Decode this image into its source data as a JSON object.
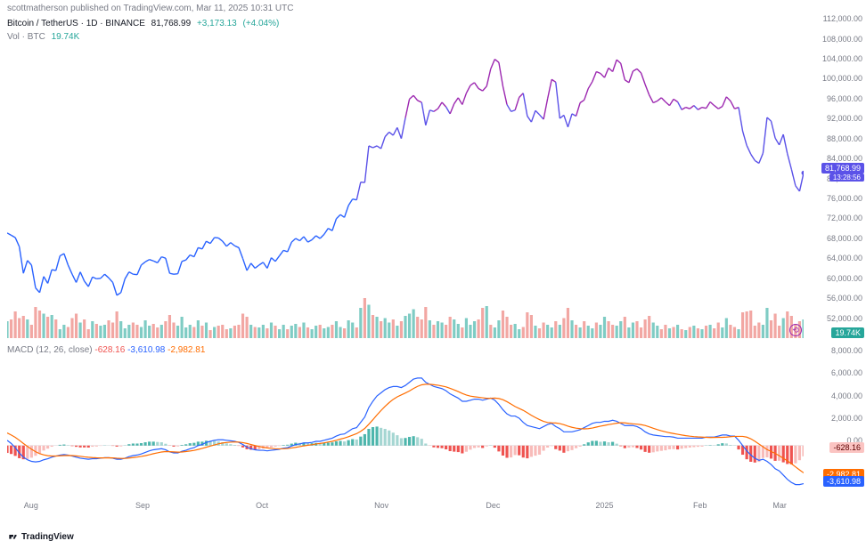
{
  "header": {
    "published_text": "scottmatherson published on TradingView.com, Mar 11, 2025 10:31 UTC"
  },
  "main_chart": {
    "symbol": "Bitcoin / TetherUS · 1D · BINANCE",
    "last_price": "81,768.99",
    "change_abs": "+3,173.13",
    "change_pct": "(+4.04%)",
    "vol_label": "Vol · BTC",
    "vol_value": "19.74K",
    "price_tag": "81,768.99",
    "time_tag": "13:28:56",
    "vol_tag": "19.74K",
    "y_ticks": [
      {
        "label": "112,000.00",
        "value": 112000
      },
      {
        "label": "108,000.00",
        "value": 108000
      },
      {
        "label": "104,000.00",
        "value": 104000
      },
      {
        "label": "100,000.00",
        "value": 100000
      },
      {
        "label": "96,000.00",
        "value": 96000
      },
      {
        "label": "92,000.00",
        "value": 92000
      },
      {
        "label": "88,000.00",
        "value": 88000
      },
      {
        "label": "84,000.00",
        "value": 84000
      },
      {
        "label": "80,000.00",
        "value": 80000
      },
      {
        "label": "76,000.00",
        "value": 76000
      },
      {
        "label": "72,000.00",
        "value": 72000
      },
      {
        "label": "68,000.00",
        "value": 68000
      },
      {
        "label": "64,000.00",
        "value": 64000
      },
      {
        "label": "60,000.00",
        "value": 60000
      },
      {
        "label": "56,000.00",
        "value": 56000
      },
      {
        "label": "52,000.00",
        "value": 52000
      }
    ],
    "y_min": 48000,
    "y_max": 114000,
    "line_colors": {
      "low": "#2962ff",
      "mid": "#5b52e8",
      "high": "#9c27b0"
    },
    "data": [
      69000,
      68500,
      68000,
      66000,
      60200,
      63000,
      62000,
      57000,
      56000,
      59500,
      58000,
      61000,
      60800,
      64000,
      64500,
      62000,
      60000,
      58200,
      60500,
      58500,
      57300,
      59400,
      59000,
      59100,
      60000,
      59200,
      58200,
      55400,
      56000,
      59000,
      60500,
      60000,
      59900,
      62000,
      62700,
      63200,
      62900,
      62500,
      63800,
      63500,
      60200,
      60000,
      60100,
      62800,
      63100,
      64200,
      63800,
      65800,
      65500,
      67200,
      66700,
      68000,
      67900,
      67200,
      66100,
      66900,
      66200,
      65800,
      63400,
      60800,
      62400,
      61300,
      62000,
      62600,
      61300,
      63600,
      62800,
      64000,
      65200,
      64900,
      67000,
      67800,
      67300,
      68200,
      67000,
      67500,
      68400,
      67800,
      68700,
      70000,
      69500,
      72100,
      73000,
      72400,
      75000,
      76400,
      76200,
      80100,
      80000,
      88000,
      87600,
      88000,
      87400,
      90000,
      91000,
      90300,
      92000,
      89600,
      94100,
      98200,
      99000,
      97900,
      97500,
      92500,
      95800,
      95500,
      96100,
      97500,
      96500,
      95000,
      97200,
      98500,
      97000,
      99500,
      101200,
      101800,
      100500,
      100000,
      101000,
      104800,
      106900,
      106200,
      101000,
      97000,
      95500,
      95800,
      98600,
      99500,
      94500,
      93200,
      95700,
      94800,
      93800,
      98300,
      102500,
      101900,
      94000,
      94700,
      92100,
      95000,
      94500,
      97400,
      98000,
      100500,
      102000,
      104200,
      103800,
      102900,
      105000,
      104200,
      106800,
      106000,
      102400,
      101800,
      104300,
      104800,
      103900,
      101400,
      99100,
      97400,
      97800,
      98500,
      97600,
      96800,
      98200,
      97600,
      95900,
      96400,
      96100,
      96800,
      95900,
      96400,
      96200,
      97600,
      96800,
      96100,
      96600,
      98700,
      97800,
      96100,
      96400,
      91200,
      88100,
      86200,
      84800,
      84200,
      86400,
      94200,
      93400,
      89700,
      88200,
      90500,
      86300,
      82900,
      79300,
      78100,
      82100
    ]
  },
  "volume": {
    "up_color": "#7fccc4",
    "down_color": "#f2a7a3",
    "max_value": 100,
    "data": [
      38,
      42,
      60,
      45,
      50,
      42,
      30,
      70,
      62,
      55,
      48,
      52,
      42,
      20,
      30,
      25,
      45,
      55,
      35,
      42,
      20,
      38,
      32,
      28,
      30,
      40,
      35,
      60,
      38,
      22,
      30,
      35,
      30,
      25,
      40,
      28,
      32,
      24,
      30,
      38,
      52,
      35,
      28,
      48,
      24,
      30,
      25,
      40,
      28,
      35,
      18,
      25,
      28,
      30,
      20,
      22,
      28,
      30,
      55,
      48,
      30,
      25,
      24,
      30,
      22,
      35,
      28,
      20,
      30,
      20,
      28,
      32,
      25,
      35,
      24,
      20,
      28,
      30,
      22,
      25,
      30,
      38,
      25,
      22,
      40,
      35,
      24,
      68,
      90,
      75,
      52,
      48,
      38,
      45,
      35,
      42,
      28,
      38,
      50,
      55,
      65,
      48,
      42,
      70,
      40,
      30,
      38,
      35,
      30,
      48,
      42,
      32,
      24,
      45,
      30,
      38,
      42,
      68,
      72,
      30,
      24,
      40,
      62,
      48,
      30,
      32,
      20,
      25,
      58,
      52,
      28,
      22,
      35,
      30,
      24,
      38,
      30,
      45,
      68,
      40,
      30,
      24,
      38,
      28,
      22,
      35,
      30,
      48,
      38,
      30,
      28,
      38,
      48,
      24,
      35,
      38,
      24,
      42,
      50,
      35,
      28,
      20,
      30,
      22,
      25,
      30,
      20,
      18,
      25,
      28,
      22,
      20,
      28,
      30,
      22,
      35,
      24,
      45,
      30,
      25,
      20,
      58,
      60,
      62,
      28,
      35,
      30,
      68,
      40,
      55,
      28,
      45,
      60,
      50,
      32,
      38,
      42
    ],
    "direction": [
      1,
      0,
      0,
      0,
      0,
      1,
      0,
      0,
      0,
      1,
      0,
      1,
      0,
      1,
      1,
      0,
      0,
      0,
      1,
      0,
      0,
      1,
      0,
      1,
      1,
      0,
      0,
      0,
      1,
      1,
      1,
      0,
      0,
      1,
      1,
      1,
      0,
      0,
      1,
      0,
      0,
      0,
      1,
      1,
      1,
      1,
      0,
      1,
      0,
      1,
      0,
      1,
      0,
      0,
      0,
      1,
      0,
      0,
      0,
      0,
      1,
      0,
      1,
      1,
      0,
      1,
      0,
      1,
      1,
      0,
      1,
      1,
      0,
      1,
      0,
      1,
      1,
      0,
      1,
      1,
      0,
      1,
      1,
      0,
      1,
      1,
      0,
      1,
      0,
      1,
      0,
      1,
      0,
      1,
      1,
      0,
      1,
      0,
      1,
      1,
      1,
      0,
      0,
      0,
      1,
      0,
      1,
      1,
      0,
      0,
      1,
      1,
      0,
      1,
      1,
      1,
      0,
      0,
      1,
      0,
      1,
      1,
      0,
      0,
      0,
      1,
      1,
      0,
      0,
      0,
      1,
      0,
      0,
      1,
      1,
      0,
      1,
      0,
      0,
      1,
      0,
      1,
      0,
      1,
      1,
      0,
      1,
      1,
      0,
      0,
      1,
      1,
      0,
      1,
      1,
      0,
      0,
      0,
      0,
      1,
      1,
      0,
      0,
      1,
      0,
      1,
      0,
      1,
      0,
      1,
      0,
      1,
      0,
      1,
      0,
      0,
      1,
      1,
      0,
      0,
      1,
      0,
      0,
      0,
      0,
      0,
      1,
      1,
      0,
      0,
      0,
      1,
      0,
      0,
      0,
      0,
      1
    ]
  },
  "macd": {
    "label": "MACD (12, 26, close)",
    "hist_val": "-628.16",
    "macd_val": "-3,610.98",
    "signal_val": "-2,982.81",
    "hist_tag": "-628.16",
    "signal_tag": "-2,982.81",
    "macd_tag": "-3,610.98",
    "hist_tag_bg": "#fbc4c2",
    "signal_tag_bg": "#ff6d00",
    "macd_tag_bg": "#2962ff",
    "y_ticks": [
      {
        "label": "8,000.00",
        "value": 8000
      },
      {
        "label": "6,000.00",
        "value": 6000
      },
      {
        "label": "4,000.00",
        "value": 4000
      },
      {
        "label": "2,000.00",
        "value": 2000
      },
      {
        "label": "0.00",
        "value": 0
      }
    ],
    "y_min": -5000,
    "y_max": 8500,
    "hist_pos_color": "#4db6ac",
    "hist_pos_light": "#a5d6d2",
    "hist_neg_color": "#ef5350",
    "hist_neg_light": "#f8bbb9",
    "macd_color": "#2962ff",
    "signal_color": "#ff6d00",
    "macd_line": [
      500,
      200,
      -200,
      -700,
      -1100,
      -1350,
      -1500,
      -1550,
      -1500,
      -1350,
      -1250,
      -1100,
      -1000,
      -900,
      -850,
      -900,
      -1000,
      -1100,
      -1200,
      -1250,
      -1300,
      -1250,
      -1250,
      -1200,
      -1150,
      -1150,
      -1200,
      -1300,
      -1300,
      -1200,
      -1050,
      -950,
      -900,
      -800,
      -650,
      -500,
      -400,
      -350,
      -300,
      -400,
      -600,
      -700,
      -700,
      -550,
      -450,
      -300,
      -200,
      0,
      100,
      300,
      400,
      500,
      550,
      550,
      500,
      450,
      400,
      300,
      100,
      -150,
      -300,
      -400,
      -450,
      -450,
      -500,
      -450,
      -400,
      -350,
      -250,
      -200,
      -50,
      100,
      150,
      250,
      250,
      300,
      400,
      400,
      500,
      600,
      700,
      900,
      1050,
      1100,
      1350,
      1600,
      1700,
      2200,
      2700,
      3600,
      4200,
      4700,
      5000,
      5300,
      5500,
      5600,
      5600,
      5500,
      5700,
      6000,
      6300,
      6400,
      6400,
      6000,
      5800,
      5600,
      5500,
      5400,
      5200,
      4900,
      4700,
      4500,
      4200,
      4200,
      4300,
      4400,
      4400,
      4300,
      4400,
      4500,
      4300,
      3900,
      3400,
      3000,
      2800,
      2800,
      2600,
      2200,
      1900,
      1800,
      1700,
      1600,
      1800,
      2000,
      2100,
      1800,
      1600,
      1300,
      1300,
      1300,
      1400,
      1500,
      1700,
      1900,
      2100,
      2200,
      2200,
      2300,
      2300,
      2400,
      2300,
      2100,
      1900,
      1900,
      1900,
      1800,
      1600,
      1300,
      1100,
      1000,
      950,
      900,
      850,
      850,
      800,
      700,
      700,
      700,
      700,
      700,
      700,
      700,
      800,
      800,
      800,
      900,
      1000,
      1000,
      900,
      900,
      500,
      0,
      -500,
      -900,
      -1200,
      -1400,
      -1300,
      -1500,
      -1800,
      -2200,
      -2400,
      -2800,
      -3200,
      -3500,
      -3700,
      -3700,
      -3610
    ],
    "signal_line": [
      1200,
      1000,
      780,
      500,
      200,
      -80,
      -350,
      -580,
      -770,
      -880,
      -960,
      -990,
      -990,
      -970,
      -950,
      -940,
      -950,
      -980,
      -1020,
      -1070,
      -1110,
      -1140,
      -1160,
      -1170,
      -1170,
      -1160,
      -1170,
      -1200,
      -1220,
      -1220,
      -1180,
      -1140,
      -1090,
      -1030,
      -960,
      -870,
      -770,
      -690,
      -610,
      -570,
      -580,
      -600,
      -620,
      -610,
      -570,
      -520,
      -460,
      -370,
      -270,
      -160,
      -50,
      60,
      160,
      240,
      290,
      320,
      340,
      330,
      280,
      200,
      100,
      0,
      -90,
      -160,
      -230,
      -270,
      -300,
      -310,
      -300,
      -280,
      -230,
      -170,
      -100,
      -30,
      30,
      80,
      150,
      200,
      260,
      330,
      400,
      500,
      610,
      710,
      840,
      990,
      1130,
      1350,
      1620,
      2020,
      2450,
      2900,
      3320,
      3720,
      4070,
      4380,
      4620,
      4800,
      4980,
      5180,
      5410,
      5610,
      5760,
      5810,
      5810,
      5770,
      5720,
      5650,
      5560,
      5430,
      5280,
      5120,
      4940,
      4790,
      4690,
      4630,
      4580,
      4530,
      4480,
      4480,
      4500,
      4460,
      4350,
      4160,
      3930,
      3700,
      3520,
      3340,
      3110,
      2870,
      2660,
      2460,
      2290,
      2190,
      2150,
      2140,
      2080,
      1980,
      1840,
      1730,
      1650,
      1600,
      1580,
      1600,
      1660,
      1750,
      1840,
      1910,
      1990,
      2050,
      2120,
      2160,
      2150,
      2100,
      2060,
      2030,
      1980,
      1900,
      1780,
      1640,
      1510,
      1400,
      1300,
      1210,
      1140,
      1070,
      1000,
      940,
      890,
      850,
      820,
      800,
      780,
      760,
      770,
      780,
      780,
      800,
      840,
      870,
      870,
      870,
      800,
      640,
      410,
      150,
      -120,
      -380,
      -560,
      -750,
      -960,
      -1210,
      -1450,
      -1720,
      -2020,
      -2310,
      -2590,
      -2810,
      -2982
    ]
  },
  "x_axis": {
    "labels": [
      {
        "text": "Aug",
        "pct": 3
      },
      {
        "text": "Sep",
        "pct": 17
      },
      {
        "text": "Oct",
        "pct": 32
      },
      {
        "text": "Nov",
        "pct": 47
      },
      {
        "text": "Dec",
        "pct": 61
      },
      {
        "text": "2025",
        "pct": 75
      },
      {
        "text": "Feb",
        "pct": 87
      },
      {
        "text": "Mar",
        "pct": 97
      }
    ]
  },
  "footer": {
    "brand": "TradingView"
  }
}
